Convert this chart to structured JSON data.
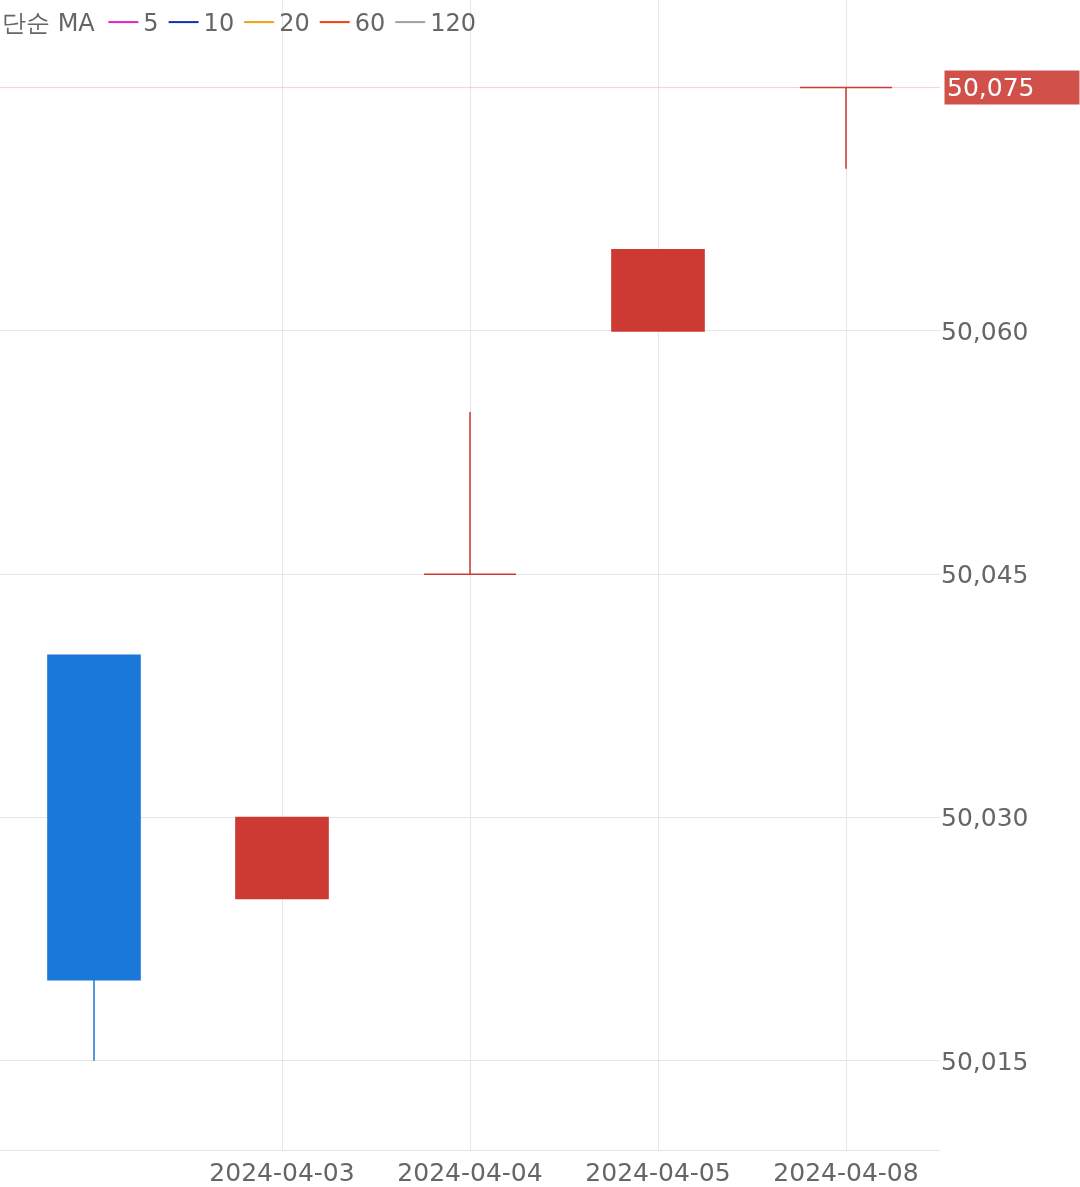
{
  "chart_data": {
    "type": "candlestick",
    "legend_title": "단순 MA",
    "legend": "top left",
    "grid": true,
    "categories": [
      null,
      "2024-04-03",
      "2024-04-04",
      "2024-04-05",
      "2024-04-08"
    ],
    "ohlc": [
      [
        50040,
        50040,
        50015,
        50020
      ],
      [
        50025,
        50030,
        50025,
        50030
      ],
      [
        50045,
        50055,
        50045,
        50045
      ],
      [
        50060,
        50065,
        50060,
        50065
      ],
      [
        50075,
        50075,
        50070,
        50075
      ]
    ],
    "colors": [
      "#1a78d8",
      "#cc3a33",
      "#cc3a33",
      "#cc3a33",
      "#cc3a33"
    ],
    "series": [
      {
        "name": "5",
        "type": "line",
        "color": "#e020c0",
        "values": [
          null,
          null,
          null,
          null,
          null
        ]
      },
      {
        "name": "10",
        "type": "line",
        "color": "#1030b0",
        "values": [
          null,
          null,
          null,
          null,
          null
        ]
      },
      {
        "name": "20",
        "type": "line",
        "color": "#f0a010",
        "values": [
          null,
          null,
          null,
          null,
          null
        ]
      },
      {
        "name": "60",
        "type": "line",
        "color": "#f04010",
        "values": [
          null,
          null,
          null,
          null,
          null
        ]
      },
      {
        "name": "120",
        "type": "line",
        "color": "#a0a0a0",
        "values": [
          null,
          null,
          null,
          null,
          null
        ]
      }
    ],
    "ylim": [
      50009.5,
      50080.4
    ],
    "yticks": [
      {
        "value": 50015,
        "label": "50,015"
      },
      {
        "value": 50030,
        "label": "50,030"
      },
      {
        "value": 50045,
        "label": "50,045"
      },
      {
        "value": 50060,
        "label": "50,060"
      }
    ],
    "ref_lines": [
      {
        "axis": "y",
        "value": 50075,
        "label": "50,075",
        "color": "#d0504a"
      }
    ]
  }
}
